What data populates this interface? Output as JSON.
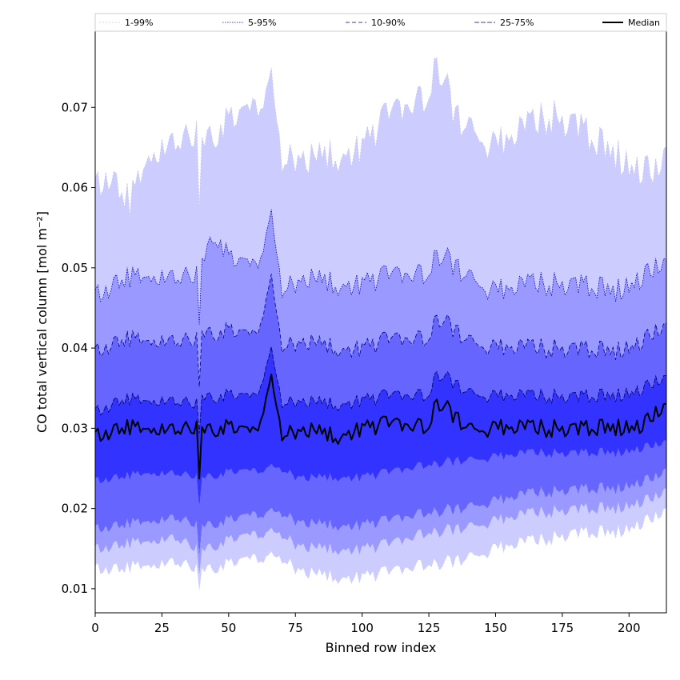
{
  "chart_data": {
    "type": "area",
    "title": "",
    "xlabel": "Binned row index",
    "ylabel": "CO total vertical column [mol m⁻²]",
    "xlim": [
      0,
      214
    ],
    "ylim": [
      0.007,
      0.0795
    ],
    "x_ticks": [
      0,
      25,
      50,
      75,
      100,
      125,
      150,
      175,
      200
    ],
    "y_ticks": [
      0.01,
      0.02,
      0.03,
      0.04,
      0.05,
      0.06,
      0.07
    ],
    "y_tick_labels": [
      "0.01",
      "0.02",
      "0.03",
      "0.04",
      "0.05",
      "0.06",
      "0.07"
    ],
    "grid": false,
    "legend_position": "top",
    "n_points": 215,
    "bands": [
      {
        "name": "1-99%",
        "color": "#ccccff",
        "line_color": "#c8c8e8",
        "dash": "2 2",
        "lower": {
          "x": [
            0,
            10,
            20,
            30,
            38,
            39,
            40,
            50,
            60,
            66,
            75,
            90,
            100,
            110,
            125,
            135,
            150,
            165,
            180,
            195,
            210,
            214
          ],
          "y": [
            0.0125,
            0.0125,
            0.013,
            0.0135,
            0.0125,
            0.0105,
            0.0125,
            0.013,
            0.0135,
            0.0145,
            0.0125,
            0.0115,
            0.0115,
            0.012,
            0.013,
            0.0135,
            0.015,
            0.016,
            0.017,
            0.017,
            0.019,
            0.02
          ]
        },
        "upper": {
          "x": [
            0,
            5,
            13,
            20,
            30,
            38,
            39,
            40,
            50,
            60,
            66,
            70,
            80,
            90,
            100,
            110,
            125,
            128,
            135,
            150,
            160,
            170,
            180,
            190,
            200,
            210,
            214
          ],
          "y": [
            0.06,
            0.0615,
            0.058,
            0.064,
            0.066,
            0.0665,
            0.059,
            0.066,
            0.068,
            0.069,
            0.0745,
            0.063,
            0.064,
            0.064,
            0.065,
            0.069,
            0.071,
            0.076,
            0.069,
            0.065,
            0.067,
            0.069,
            0.068,
            0.065,
            0.063,
            0.062,
            0.065
          ]
        }
      },
      {
        "name": "5-95%",
        "color": "#9999ff",
        "line_color": "#0000c0",
        "dash": "1.5 1.5",
        "lower": {
          "x": [
            0,
            10,
            20,
            30,
            38,
            39,
            40,
            50,
            60,
            66,
            75,
            90,
            100,
            110,
            125,
            135,
            150,
            165,
            180,
            195,
            210,
            214
          ],
          "y": [
            0.015,
            0.0155,
            0.016,
            0.0165,
            0.015,
            0.0125,
            0.015,
            0.016,
            0.0165,
            0.0175,
            0.0155,
            0.015,
            0.015,
            0.0155,
            0.017,
            0.0175,
            0.0185,
            0.0195,
            0.02,
            0.02,
            0.0215,
            0.0225
          ]
        },
        "upper": {
          "x": [
            0,
            10,
            20,
            30,
            38,
            39,
            40,
            45,
            50,
            60,
            66,
            70,
            80,
            90,
            100,
            110,
            125,
            128,
            140,
            150,
            165,
            180,
            195,
            205,
            214
          ],
          "y": [
            0.0465,
            0.0485,
            0.049,
            0.049,
            0.049,
            0.044,
            0.051,
            0.0545,
            0.051,
            0.0495,
            0.057,
            0.047,
            0.049,
            0.048,
            0.048,
            0.049,
            0.049,
            0.052,
            0.049,
            0.047,
            0.048,
            0.048,
            0.047,
            0.049,
            0.051
          ]
        }
      },
      {
        "name": "10-90%",
        "color": "#6666ff",
        "line_color": "#00007f",
        "dash": "5 3",
        "lower": {
          "x": [
            0,
            10,
            20,
            30,
            38,
            39,
            40,
            50,
            60,
            66,
            75,
            90,
            100,
            110,
            125,
            135,
            150,
            165,
            180,
            195,
            210,
            214
          ],
          "y": [
            0.0175,
            0.018,
            0.0185,
            0.019,
            0.018,
            0.015,
            0.018,
            0.0185,
            0.019,
            0.02,
            0.0185,
            0.018,
            0.018,
            0.0185,
            0.0195,
            0.02,
            0.021,
            0.022,
            0.0225,
            0.0225,
            0.024,
            0.025
          ]
        },
        "upper": {
          "x": [
            0,
            10,
            20,
            30,
            38,
            39,
            40,
            50,
            60,
            66,
            70,
            80,
            90,
            100,
            110,
            125,
            128,
            140,
            150,
            165,
            180,
            195,
            205,
            214
          ],
          "y": [
            0.0395,
            0.041,
            0.041,
            0.041,
            0.041,
            0.036,
            0.042,
            0.042,
            0.041,
            0.049,
            0.04,
            0.041,
            0.04,
            0.04,
            0.041,
            0.041,
            0.044,
            0.041,
            0.04,
            0.04,
            0.04,
            0.0395,
            0.041,
            0.043
          ]
        }
      },
      {
        "name": "25-75%",
        "color": "#3333ff",
        "line_color": "#000060",
        "dash": "6 2",
        "lower": {
          "x": [
            0,
            10,
            20,
            30,
            38,
            39,
            40,
            50,
            60,
            66,
            75,
            90,
            100,
            110,
            125,
            135,
            150,
            165,
            180,
            195,
            210,
            214
          ],
          "y": [
            0.0235,
            0.024,
            0.0245,
            0.0245,
            0.024,
            0.021,
            0.024,
            0.0245,
            0.0245,
            0.0255,
            0.024,
            0.024,
            0.024,
            0.0245,
            0.0255,
            0.026,
            0.0265,
            0.027,
            0.027,
            0.027,
            0.028,
            0.0285
          ]
        },
        "upper": {
          "x": [
            0,
            10,
            20,
            30,
            38,
            39,
            40,
            50,
            60,
            66,
            70,
            80,
            90,
            100,
            110,
            125,
            128,
            140,
            150,
            165,
            180,
            195,
            205,
            214
          ],
          "y": [
            0.032,
            0.0335,
            0.0335,
            0.0335,
            0.033,
            0.03,
            0.034,
            0.034,
            0.0335,
            0.04,
            0.033,
            0.0335,
            0.033,
            0.0335,
            0.034,
            0.034,
            0.037,
            0.0345,
            0.034,
            0.034,
            0.034,
            0.034,
            0.035,
            0.0365
          ]
        }
      }
    ],
    "median": {
      "name": "Median",
      "color": "#000000",
      "x": [
        0,
        10,
        20,
        30,
        38,
        39,
        40,
        50,
        60,
        66,
        70,
        80,
        90,
        100,
        110,
        125,
        128,
        140,
        150,
        165,
        180,
        195,
        205,
        214
      ],
      "y": [
        0.029,
        0.03,
        0.03,
        0.03,
        0.03,
        0.0245,
        0.03,
        0.03,
        0.029,
        0.0365,
        0.029,
        0.03,
        0.029,
        0.03,
        0.0305,
        0.03,
        0.0335,
        0.03,
        0.03,
        0.03,
        0.03,
        0.03,
        0.0305,
        0.033
      ]
    }
  }
}
